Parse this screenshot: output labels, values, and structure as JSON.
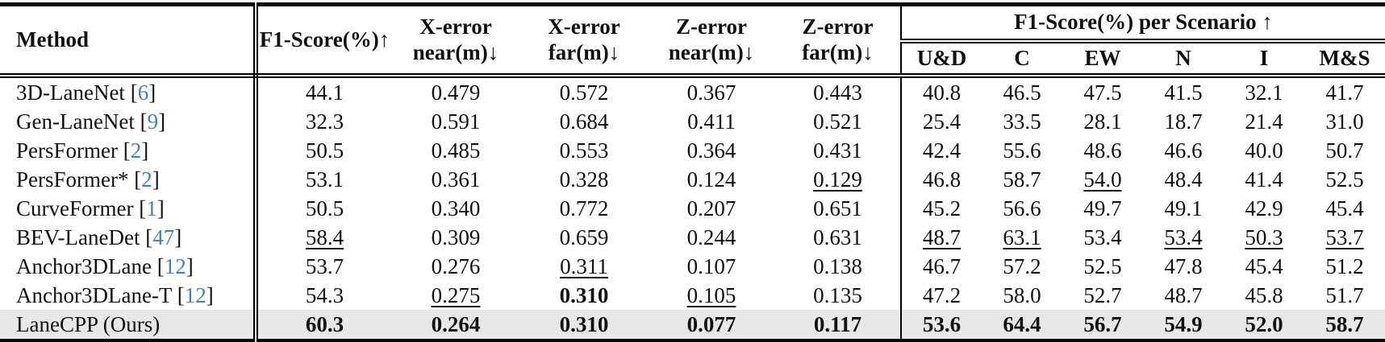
{
  "table": {
    "headers": {
      "method": "Method",
      "f1": "F1-Score(%)↑",
      "x_error_near": {
        "line1": "X-error",
        "line2": "near(m)↓"
      },
      "x_error_far": {
        "line1": "X-error",
        "line2": "far(m)↓"
      },
      "z_error_near": {
        "line1": "Z-error",
        "line2": "near(m)↓"
      },
      "z_error_far": {
        "line1": "Z-error",
        "line2": "far(m)↓"
      },
      "scenario_group": "F1-Score(%) per Scenario ↑",
      "scenarios": [
        "U&D",
        "C",
        "EW",
        "N",
        "I",
        "M&S"
      ]
    },
    "rows": [
      {
        "method": "3D-LaneNet",
        "cite": "6",
        "highlight": false,
        "values": [
          "44.1",
          "0.479",
          "0.572",
          "0.367",
          "0.443",
          "40.8",
          "46.5",
          "47.5",
          "41.5",
          "32.1",
          "41.7"
        ],
        "styles": [
          "",
          "",
          "",
          "",
          "",
          "",
          "",
          "",
          "",
          "",
          ""
        ]
      },
      {
        "method": "Gen-LaneNet",
        "cite": "9",
        "highlight": false,
        "values": [
          "32.3",
          "0.591",
          "0.684",
          "0.411",
          "0.521",
          "25.4",
          "33.5",
          "28.1",
          "18.7",
          "21.4",
          "31.0"
        ],
        "styles": [
          "",
          "",
          "",
          "",
          "",
          "",
          "",
          "",
          "",
          "",
          ""
        ]
      },
      {
        "method": "PersFormer",
        "cite": "2",
        "highlight": false,
        "values": [
          "50.5",
          "0.485",
          "0.553",
          "0.364",
          "0.431",
          "42.4",
          "55.6",
          "48.6",
          "46.6",
          "40.0",
          "50.7"
        ],
        "styles": [
          "",
          "",
          "",
          "",
          "",
          "",
          "",
          "",
          "",
          "",
          ""
        ]
      },
      {
        "method": "PersFormer*",
        "cite": "2",
        "highlight": false,
        "values": [
          "53.1",
          "0.361",
          "0.328",
          "0.124",
          "0.129",
          "46.8",
          "58.7",
          "54.0",
          "48.4",
          "41.4",
          "52.5"
        ],
        "styles": [
          "",
          "",
          "",
          "",
          "u",
          "",
          "",
          "u",
          "",
          "",
          ""
        ]
      },
      {
        "method": "CurveFormer",
        "cite": "1",
        "highlight": false,
        "values": [
          "50.5",
          "0.340",
          "0.772",
          "0.207",
          "0.651",
          "45.2",
          "56.6",
          "49.7",
          "49.1",
          "42.9",
          "45.4"
        ],
        "styles": [
          "",
          "",
          "",
          "",
          "",
          "",
          "",
          "",
          "",
          "",
          ""
        ]
      },
      {
        "method": "BEV-LaneDet",
        "cite": "47",
        "highlight": false,
        "values": [
          "58.4",
          "0.309",
          "0.659",
          "0.244",
          "0.631",
          "48.7",
          "63.1",
          "53.4",
          "53.4",
          "50.3",
          "53.7"
        ],
        "styles": [
          "u",
          "",
          "",
          "",
          "",
          "u",
          "u",
          "",
          "u",
          "u",
          "u"
        ]
      },
      {
        "method": "Anchor3DLane",
        "cite": "12",
        "highlight": false,
        "values": [
          "53.7",
          "0.276",
          "0.311",
          "0.107",
          "0.138",
          "46.7",
          "57.2",
          "52.5",
          "47.8",
          "45.4",
          "51.2"
        ],
        "styles": [
          "",
          "",
          "u",
          "",
          "",
          "",
          "",
          "",
          "",
          "",
          ""
        ]
      },
      {
        "method": "Anchor3DLane-T",
        "cite": "12",
        "highlight": false,
        "values": [
          "54.3",
          "0.275",
          "0.310",
          "0.105",
          "0.135",
          "47.2",
          "58.0",
          "52.7",
          "48.7",
          "45.8",
          "51.7"
        ],
        "styles": [
          "",
          "u",
          "b",
          "u",
          "",
          "",
          "",
          "",
          "",
          "",
          ""
        ]
      },
      {
        "method": "LaneCPP (Ours)",
        "cite": "",
        "highlight": true,
        "values": [
          "60.3",
          "0.264",
          "0.310",
          "0.077",
          "0.117",
          "53.6",
          "64.4",
          "56.7",
          "54.9",
          "52.0",
          "58.7"
        ],
        "styles": [
          "b",
          "b",
          "b",
          "b",
          "b",
          "b",
          "b",
          "b",
          "b",
          "b",
          "b"
        ]
      }
    ],
    "colors": {
      "citation": "#4081be",
      "highlight_row_bg": "#e8e8e8",
      "rule": "#000000"
    }
  }
}
